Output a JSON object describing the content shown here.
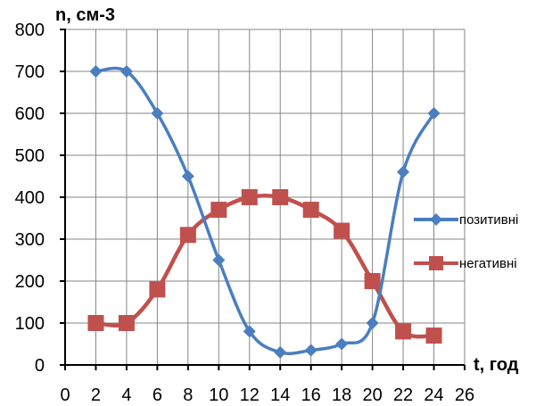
{
  "chart_data": {
    "type": "line",
    "x": [
      2,
      4,
      6,
      8,
      10,
      12,
      14,
      16,
      18,
      20,
      22,
      24
    ],
    "series": [
      {
        "name": "позитивні",
        "color": "#4a7ebf",
        "marker": "diamond",
        "values": [
          700,
          700,
          600,
          450,
          250,
          80,
          30,
          35,
          50,
          100,
          460,
          600
        ]
      },
      {
        "name": "негативні",
        "color": "#c0504d",
        "marker": "square",
        "values": [
          100,
          100,
          180,
          310,
          370,
          400,
          400,
          370,
          320,
          200,
          80,
          70
        ]
      }
    ],
    "xlabel": "t, год",
    "ylabel": "n, см-3",
    "xlim": [
      0,
      26
    ],
    "ylim": [
      0,
      800
    ],
    "xticks": [
      "0",
      "2",
      "4",
      "6",
      "8",
      "10",
      "12",
      "14",
      "16",
      "18",
      "20",
      "22",
      "24",
      "26"
    ],
    "yticks": [
      "0",
      "100",
      "200",
      "300",
      "400",
      "500",
      "600",
      "700",
      "800"
    ],
    "grid": true,
    "legend_position": "right",
    "smooth": true
  }
}
